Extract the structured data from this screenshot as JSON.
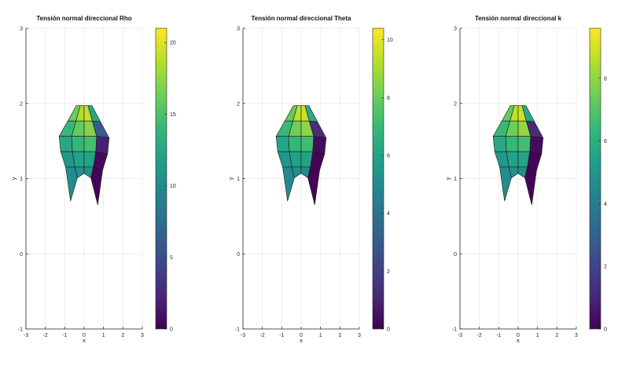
{
  "colors": {
    "viridis": [
      "#440154",
      "#482878",
      "#3e4989",
      "#31688e",
      "#26828e",
      "#1f9e89",
      "#35b779",
      "#6ece58",
      "#b5de2b",
      "#fde725"
    ],
    "grid": "#e6e6e6",
    "axis": "#262626",
    "surface_edge": "#1a1a1a"
  },
  "chart_data": [
    {
      "type": "surface",
      "title": "Tensión normal direccional Rho",
      "xlabel": "x",
      "ylabel": "y",
      "xlim": [
        -3,
        3
      ],
      "ylim": [
        -1,
        3
      ],
      "xticks": [
        "-3",
        "-2",
        "-1",
        "0",
        "1",
        "2",
        "3"
      ],
      "yticks": [
        "-1",
        "0",
        "1",
        "2",
        "3"
      ],
      "grid": true,
      "colorbar": {
        "range": [
          0,
          21
        ],
        "ticks": [
          "0",
          "5",
          "10",
          "15",
          "20"
        ],
        "tick_values": [
          0,
          5,
          10,
          15,
          20
        ],
        "colormap": "viridis"
      },
      "shape": {
        "rows": 5,
        "cols": 4,
        "y_top": 1.97,
        "y_bottom": 0.7,
        "x_half_width_top": 0.4,
        "x_half_width_mid": 1.4,
        "x_half_width_bottom": 0.7
      },
      "values": [
        [
          16.2,
          18.5,
          19.2,
          12.5
        ],
        [
          14.0,
          15.9,
          17.1,
          6.0
        ],
        [
          12.5,
          13.9,
          14.6,
          2.0
        ],
        [
          11.2,
          12.1,
          12.2,
          0.5
        ],
        [
          10.2,
          10.6,
          10.4,
          0.2
        ]
      ]
    },
    {
      "type": "surface",
      "title": "Tensión normal direccional Theta",
      "xlabel": "x",
      "ylabel": "y",
      "xlim": [
        -3,
        3
      ],
      "ylim": [
        -1,
        3
      ],
      "xticks": [
        "-3",
        "-2",
        "-1",
        "0",
        "1",
        "2",
        "3"
      ],
      "yticks": [
        "-1",
        "0",
        "1",
        "2",
        "3"
      ],
      "grid": true,
      "colorbar": {
        "range": [
          0,
          10.4
        ],
        "ticks": [
          "0",
          "2",
          "4",
          "6",
          "8",
          "10"
        ],
        "tick_values": [
          0,
          2,
          4,
          6,
          8,
          10
        ],
        "colormap": "viridis"
      },
      "shape": {
        "rows": 5,
        "cols": 4,
        "y_top": 1.97,
        "y_bottom": 0.7,
        "x_half_width_top": 0.4,
        "x_half_width_mid": 1.4,
        "x_half_width_bottom": 0.7
      },
      "values": [
        [
          7.9,
          9.4,
          9.6,
          6.3
        ],
        [
          7.0,
          8.1,
          8.6,
          1.4
        ],
        [
          6.1,
          6.9,
          7.2,
          0.3
        ],
        [
          5.5,
          5.9,
          6.0,
          0.1
        ],
        [
          4.9,
          5.2,
          5.1,
          0.1
        ]
      ]
    },
    {
      "type": "surface",
      "title": "Tensión normal direccional k",
      "xlabel": "x",
      "ylabel": "y",
      "xlim": [
        -3,
        3
      ],
      "ylim": [
        -1,
        3
      ],
      "xticks": [
        "-3",
        "-2",
        "-1",
        "0",
        "1",
        "2",
        "3"
      ],
      "yticks": [
        "-1",
        "0",
        "1",
        "2",
        "3"
      ],
      "grid": true,
      "colorbar": {
        "range": [
          0,
          9.6
        ],
        "ticks": [
          "0",
          "2",
          "4",
          "6",
          "8"
        ],
        "tick_values": [
          0,
          2,
          4,
          6,
          8
        ],
        "colormap": "viridis"
      },
      "shape": {
        "rows": 5,
        "cols": 4,
        "y_top": 1.97,
        "y_bottom": 0.7,
        "x_half_width_top": 0.4,
        "x_half_width_mid": 1.4,
        "x_half_width_bottom": 0.7
      },
      "values": [
        [
          7.3,
          8.6,
          8.9,
          5.8
        ],
        [
          6.5,
          7.5,
          8.0,
          1.2
        ],
        [
          5.7,
          6.4,
          6.7,
          0.3
        ],
        [
          5.1,
          5.5,
          5.6,
          0.1
        ],
        [
          4.6,
          4.8,
          4.8,
          0.1
        ]
      ]
    }
  ]
}
